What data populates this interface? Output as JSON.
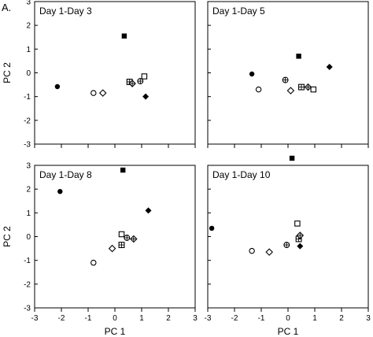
{
  "figure_label": "A.",
  "chart_data": [
    {
      "type": "scatter",
      "title": "Day 1-Day 3",
      "xlabel": "",
      "ylabel": "PC 2",
      "xlim": [
        -3,
        3
      ],
      "ylim": [
        -3,
        3
      ],
      "xticks": [
        "-3",
        "-2",
        "-1",
        "0",
        "1",
        "2",
        "3"
      ],
      "yticks": [
        "-3",
        "-2",
        "-1",
        "0",
        "1",
        "2",
        "3"
      ],
      "show_xticklabels": false,
      "show_yticklabels": true,
      "grid": false,
      "points": [
        {
          "x": -2.15,
          "y": -0.58,
          "marker": "filled-circle"
        },
        {
          "x": -0.8,
          "y": -0.85,
          "marker": "open-circle"
        },
        {
          "x": -0.45,
          "y": -0.85,
          "marker": "open-diamond"
        },
        {
          "x": 0.35,
          "y": 1.55,
          "marker": "filled-square"
        },
        {
          "x": 0.55,
          "y": -0.38,
          "marker": "hatched-square"
        },
        {
          "x": 0.65,
          "y": -0.45,
          "marker": "hatched-diamond"
        },
        {
          "x": 0.95,
          "y": -0.35,
          "marker": "hatched-circle"
        },
        {
          "x": 1.1,
          "y": -0.15,
          "marker": "open-square"
        },
        {
          "x": 1.15,
          "y": -1.0,
          "marker": "filled-diamond"
        }
      ]
    },
    {
      "type": "scatter",
      "title": "Day 1-Day 5",
      "xlabel": "",
      "ylabel": "",
      "xlim": [
        -3,
        3
      ],
      "ylim": [
        -3,
        3
      ],
      "xticks": [
        "-3",
        "-2",
        "-1",
        "0",
        "1",
        "2",
        "3"
      ],
      "yticks": [
        "-3",
        "-2",
        "-1",
        "0",
        "1",
        "2",
        "3"
      ],
      "show_xticklabels": false,
      "show_yticklabels": false,
      "grid": false,
      "points": [
        {
          "x": -1.35,
          "y": -0.05,
          "marker": "filled-circle"
        },
        {
          "x": -1.1,
          "y": -0.7,
          "marker": "open-circle"
        },
        {
          "x": -0.1,
          "y": -0.3,
          "marker": "hatched-circle"
        },
        {
          "x": 0.1,
          "y": -0.75,
          "marker": "open-diamond"
        },
        {
          "x": 0.4,
          "y": 0.7,
          "marker": "filled-square"
        },
        {
          "x": 0.5,
          "y": -0.6,
          "marker": "hatched-square"
        },
        {
          "x": 0.75,
          "y": -0.6,
          "marker": "hatched-diamond"
        },
        {
          "x": 0.95,
          "y": -0.7,
          "marker": "open-square"
        },
        {
          "x": 1.55,
          "y": 0.25,
          "marker": "filled-diamond"
        }
      ]
    },
    {
      "type": "scatter",
      "title": "Day 1-Day 8",
      "xlabel": "PC 1",
      "ylabel": "PC 2",
      "xlim": [
        -3,
        3
      ],
      "ylim": [
        -3,
        3
      ],
      "xticks": [
        "-3",
        "-2",
        "-1",
        "0",
        "1",
        "2",
        "3"
      ],
      "yticks": [
        "-3",
        "-2",
        "-1",
        "0",
        "1",
        "2",
        "3"
      ],
      "show_xticklabels": true,
      "show_yticklabels": true,
      "grid": false,
      "points": [
        {
          "x": -2.05,
          "y": 1.9,
          "marker": "filled-circle"
        },
        {
          "x": -0.8,
          "y": -1.1,
          "marker": "open-circle"
        },
        {
          "x": -0.1,
          "y": -0.5,
          "marker": "open-diamond"
        },
        {
          "x": 0.25,
          "y": 0.1,
          "marker": "open-square"
        },
        {
          "x": 0.25,
          "y": -0.35,
          "marker": "hatched-square"
        },
        {
          "x": 0.3,
          "y": 2.8,
          "marker": "filled-square"
        },
        {
          "x": 0.45,
          "y": -0.05,
          "marker": "hatched-circle"
        },
        {
          "x": 0.7,
          "y": -0.1,
          "marker": "hatched-diamond"
        },
        {
          "x": 1.25,
          "y": 1.1,
          "marker": "filled-diamond"
        }
      ]
    },
    {
      "type": "scatter",
      "title": "Day 1-Day 10",
      "xlabel": "PC 1",
      "ylabel": "",
      "xlim": [
        -3,
        3
      ],
      "ylim": [
        -3,
        3
      ],
      "xticks": [
        "-3",
        "-2",
        "-1",
        "0",
        "1",
        "2",
        "3"
      ],
      "yticks": [
        "-3",
        "-2",
        "-1",
        "0",
        "1",
        "2",
        "3"
      ],
      "show_xticklabels": true,
      "show_yticklabels": false,
      "grid": false,
      "points": [
        {
          "x": -2.85,
          "y": 0.35,
          "marker": "filled-circle"
        },
        {
          "x": -1.35,
          "y": -0.6,
          "marker": "open-circle"
        },
        {
          "x": -0.7,
          "y": -0.65,
          "marker": "open-diamond"
        },
        {
          "x": -0.05,
          "y": -0.35,
          "marker": "hatched-circle"
        },
        {
          "x": 0.15,
          "y": 3.3,
          "marker": "filled-square"
        },
        {
          "x": 0.35,
          "y": 0.55,
          "marker": "open-square"
        },
        {
          "x": 0.4,
          "y": -0.1,
          "marker": "hatched-square"
        },
        {
          "x": 0.45,
          "y": 0.05,
          "marker": "hatched-diamond"
        },
        {
          "x": 0.45,
          "y": -0.4,
          "marker": "filled-diamond"
        }
      ]
    }
  ]
}
